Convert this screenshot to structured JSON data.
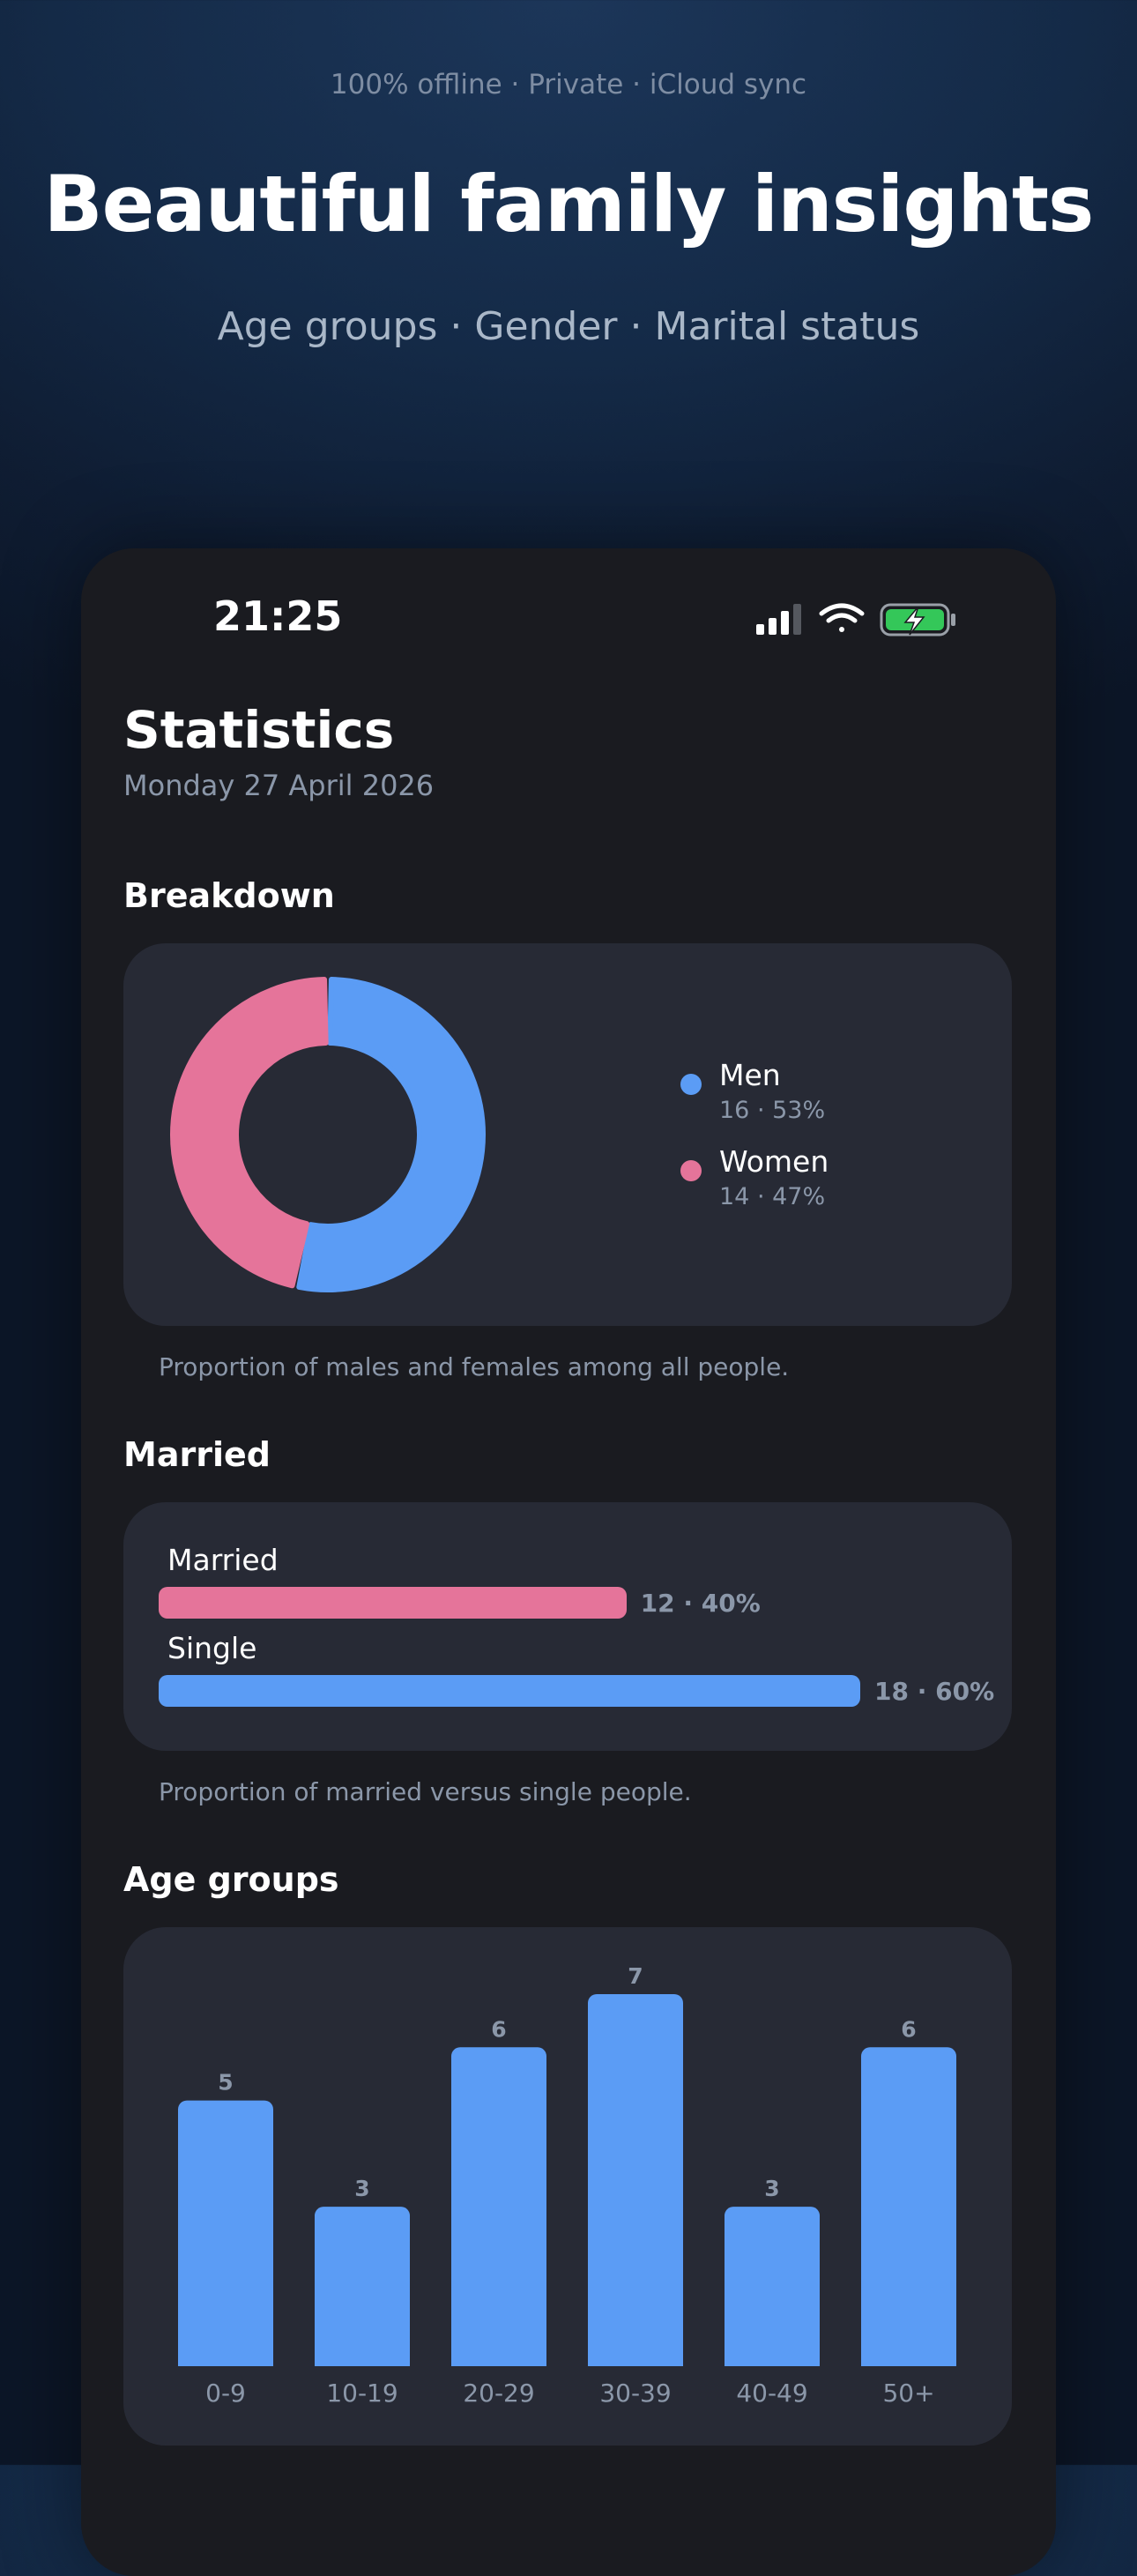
{
  "hero": {
    "tagline": "100% offline · Private · iCloud sync",
    "headline": "Beautiful family insights",
    "subline": "Age groups · Gender · Marital status"
  },
  "status_bar": {
    "time": "21:25",
    "icons": [
      "cellular-signal-icon",
      "wifi-icon",
      "battery-charging-icon"
    ],
    "battery_color": "#34c759"
  },
  "screen": {
    "title": "Statistics",
    "date": "Monday 27 April 2026"
  },
  "breakdown": {
    "section_title": "Breakdown",
    "caption": "Proportion of males and females among all people.",
    "legend": [
      {
        "name": "Men",
        "value": "16 · 53%",
        "color": "#5b9cf5"
      },
      {
        "name": "Women",
        "value": "14 · 47%",
        "color": "#e5749a"
      }
    ]
  },
  "married": {
    "section_title": "Married",
    "caption": "Proportion of married versus single people.",
    "bars": [
      {
        "label": "Married",
        "value": "12 · 40%",
        "color": "#e5749a"
      },
      {
        "label": "Single",
        "value": "18 · 60%",
        "color": "#5b9cf5"
      }
    ]
  },
  "age_groups": {
    "section_title": "Age groups"
  },
  "chart_data": [
    {
      "type": "pie",
      "variant": "donut",
      "categories": [
        "Men",
        "Women"
      ],
      "values": [
        16,
        14
      ],
      "percentages": [
        53,
        47
      ],
      "colors": [
        "#5b9cf5",
        "#e5749a"
      ],
      "legend": "right"
    },
    {
      "type": "bar",
      "orientation": "horizontal",
      "categories": [
        "Married",
        "Single"
      ],
      "values": [
        12,
        18
      ],
      "percentages": [
        40,
        60
      ],
      "colors": [
        "#e5749a",
        "#5b9cf5"
      ]
    },
    {
      "type": "bar",
      "categories": [
        "0-9",
        "10-19",
        "20-29",
        "30-39",
        "40-49",
        "50+"
      ],
      "values": [
        5,
        3,
        6,
        7,
        3,
        6
      ],
      "ylim": [
        0,
        7
      ],
      "color": "#5b9cf5",
      "grid": false
    }
  ]
}
